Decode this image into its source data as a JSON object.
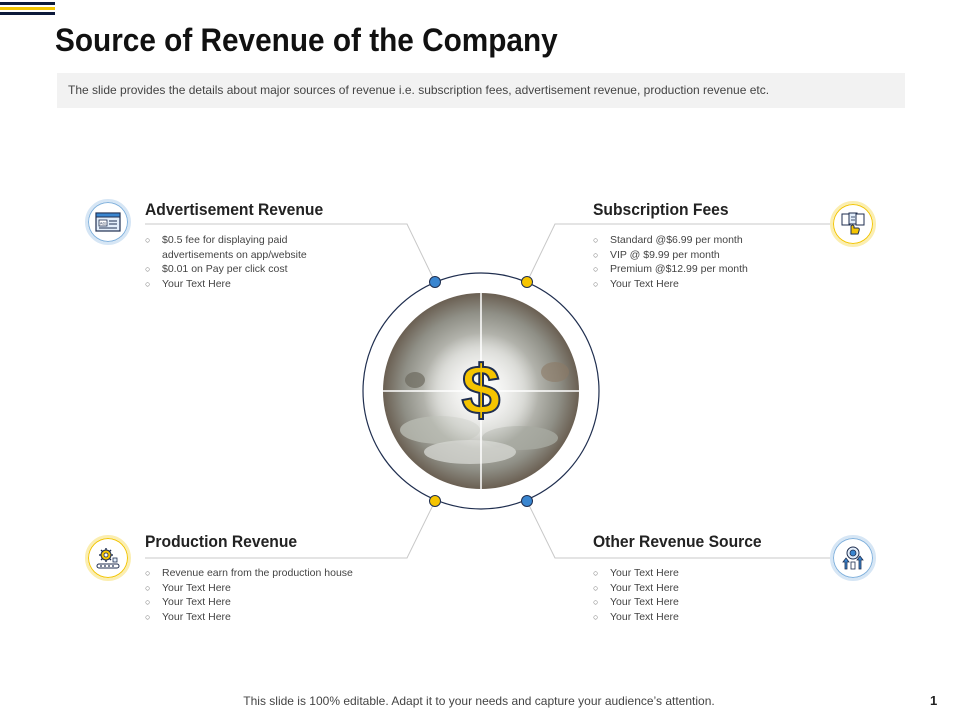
{
  "header": {
    "title": "Source of Revenue of the Company",
    "subtitle": "The slide provides the details about major sources of revenue i.e. subscription fees, advertisement revenue, production revenue etc.",
    "accent_colors": [
      "#0d1a3a",
      "#f2c400",
      "#0d1a3a"
    ]
  },
  "center": {
    "symbol": "$",
    "symbol_color": "#f5c400",
    "ring_color": "#1f2e4f",
    "dot_colors": {
      "blue": "#3a86d0",
      "yellow": "#f5c400"
    }
  },
  "sections": {
    "advertisement": {
      "title": "Advertisement Revenue",
      "icon": "ads-window-icon",
      "icon_label": "Ads",
      "bullets": [
        "$0.5 fee for displaying paid advertisements on app/website",
        "$0.01 on Pay per click cost",
        "Your Text Here"
      ]
    },
    "subscription": {
      "title": "Subscription Fees",
      "icon": "subscription-hand-icon",
      "bullets": [
        "Standard @$6.99 per month",
        "VIP @ $9.99 per month",
        "Premium @$12.99 per month",
        "Your Text Here"
      ]
    },
    "production": {
      "title": "Production Revenue",
      "icon": "gear-production-icon",
      "bullets": [
        "Revenue earn from the production house",
        "Your Text Here",
        "Your Text Here",
        "Your Text Here"
      ]
    },
    "other": {
      "title": "Other Revenue Source",
      "icon": "growth-target-icon",
      "bullets": [
        "Your Text Here",
        "Your Text Here",
        "Your Text Here",
        "Your Text Here"
      ]
    }
  },
  "footer": {
    "text": "This slide is 100% editable. Adapt it to your needs and capture your audience’s attention.",
    "page_number": "1"
  }
}
